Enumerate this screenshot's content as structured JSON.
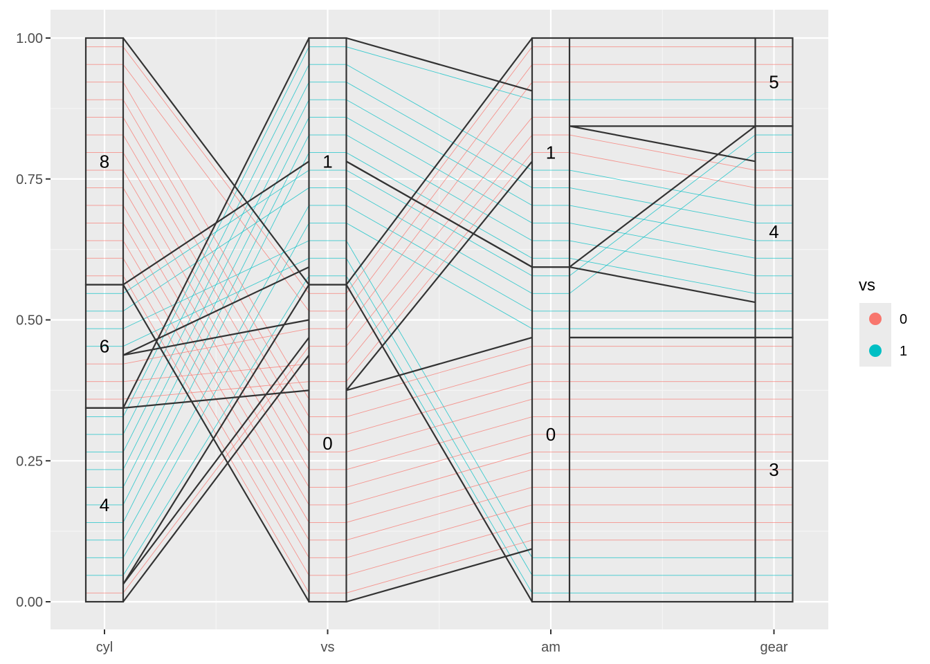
{
  "colors": {
    "panel_background": "#ebebeb",
    "grid_major": "#ffffff",
    "grid_minor": "#f5f5f5",
    "series_0": "#F8766D",
    "series_1": "#00BFC4",
    "stratum_border": "#333333",
    "legend_key_bg": "#ebebeb"
  },
  "chart_data": {
    "type": "alluvial",
    "axes": [
      "cyl",
      "vs",
      "am",
      "gear"
    ],
    "ylim": [
      0,
      1
    ],
    "y_ticks": [
      "0.00",
      "0.25",
      "0.50",
      "0.75",
      "1.00"
    ],
    "grid": true,
    "legend": {
      "title": "vs",
      "position": "right",
      "entries": [
        {
          "label": "0",
          "color": "#F8766D"
        },
        {
          "label": "1",
          "color": "#00BFC4"
        }
      ]
    },
    "strata": {
      "cyl": [
        {
          "label": "4",
          "count": 11
        },
        {
          "label": "6",
          "count": 7
        },
        {
          "label": "8",
          "count": 14
        }
      ],
      "vs": [
        {
          "label": "0",
          "count": 18
        },
        {
          "label": "1",
          "count": 14
        }
      ],
      "am": [
        {
          "label": "0",
          "count": 19
        },
        {
          "label": "1",
          "count": 13
        }
      ],
      "gear": [
        {
          "label": "3",
          "count": 15
        },
        {
          "label": "4",
          "count": 12
        },
        {
          "label": "5",
          "count": 5
        }
      ]
    },
    "flows": [
      {
        "cyl": "4",
        "vs": "0",
        "am": "1",
        "gear": "5",
        "count": 1
      },
      {
        "cyl": "4",
        "vs": "1",
        "am": "0",
        "gear": "3",
        "count": 1
      },
      {
        "cyl": "4",
        "vs": "1",
        "am": "0",
        "gear": "4",
        "count": 2
      },
      {
        "cyl": "4",
        "vs": "1",
        "am": "1",
        "gear": "4",
        "count": 6
      },
      {
        "cyl": "4",
        "vs": "1",
        "am": "1",
        "gear": "5",
        "count": 1
      },
      {
        "cyl": "6",
        "vs": "0",
        "am": "1",
        "gear": "4",
        "count": 2
      },
      {
        "cyl": "6",
        "vs": "0",
        "am": "1",
        "gear": "5",
        "count": 1
      },
      {
        "cyl": "6",
        "vs": "1",
        "am": "0",
        "gear": "3",
        "count": 2
      },
      {
        "cyl": "6",
        "vs": "1",
        "am": "0",
        "gear": "4",
        "count": 2
      },
      {
        "cyl": "8",
        "vs": "0",
        "am": "0",
        "gear": "3",
        "count": 12
      },
      {
        "cyl": "8",
        "vs": "0",
        "am": "1",
        "gear": "5",
        "count": 2
      }
    ]
  }
}
